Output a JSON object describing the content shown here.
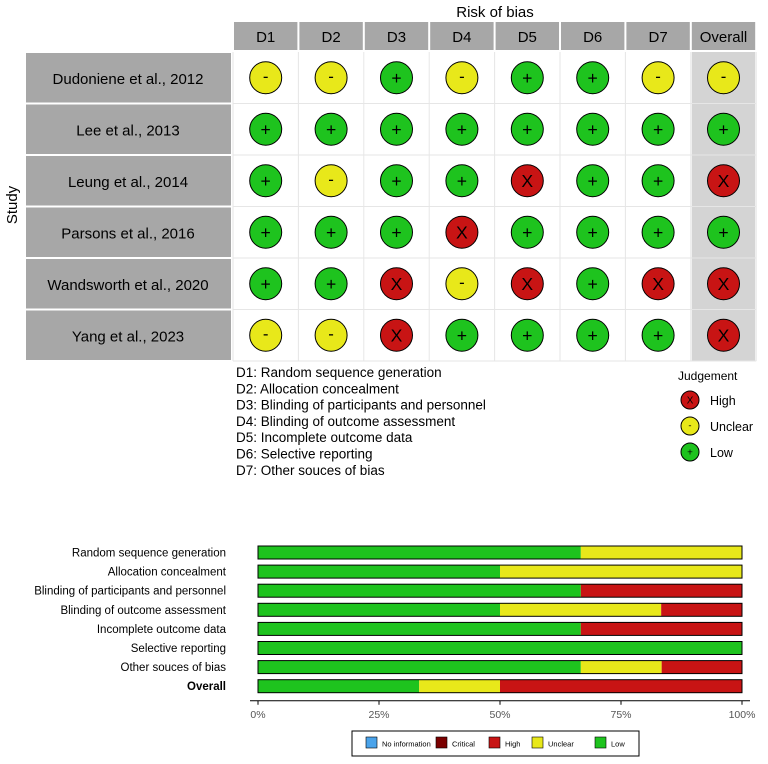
{
  "colors": {
    "low": "#1ec31e",
    "unclear": "#e8e81a",
    "high": "#c81414",
    "critical": "#7a0000",
    "no_information": "#4aa3ea",
    "header_gray": "#a7a7a7",
    "overall_gray": "#d4d4d4"
  },
  "traffic_light": {
    "title": "Risk of bias",
    "ylabel": "Study",
    "domains": [
      "D1",
      "D2",
      "D3",
      "D4",
      "D5",
      "D6",
      "D7",
      "Overall"
    ],
    "studies": [
      {
        "name": "Dudoniene et al., 2012",
        "judgements": [
          "unclear",
          "unclear",
          "low",
          "unclear",
          "low",
          "low",
          "unclear",
          "unclear"
        ]
      },
      {
        "name": "Lee et al., 2013",
        "judgements": [
          "low",
          "low",
          "low",
          "low",
          "low",
          "low",
          "low",
          "low"
        ]
      },
      {
        "name": "Leung et al., 2014",
        "judgements": [
          "low",
          "unclear",
          "low",
          "low",
          "high",
          "low",
          "low",
          "high"
        ]
      },
      {
        "name": "Parsons et al., 2016",
        "judgements": [
          "low",
          "low",
          "low",
          "high",
          "low",
          "low",
          "low",
          "low"
        ]
      },
      {
        "name": "Wandsworth et al., 2020",
        "judgements": [
          "low",
          "low",
          "high",
          "unclear",
          "high",
          "low",
          "high",
          "high"
        ]
      },
      {
        "name": "Yang et al., 2023",
        "judgements": [
          "unclear",
          "unclear",
          "high",
          "low",
          "low",
          "low",
          "low",
          "high"
        ]
      }
    ],
    "domain_key": [
      "D1: Random sequence generation",
      "D2: Allocation concealment",
      "D3: Blinding of participants and personnel",
      "D4: Blinding of outcome assessment",
      "D5: Incomplete outcome data",
      "D6: Selective reporting",
      "D7: Other souces of bias"
    ],
    "legend": {
      "title": "Judgement",
      "items": [
        {
          "level": "high",
          "label": "High"
        },
        {
          "level": "unclear",
          "label": "Unclear"
        },
        {
          "level": "low",
          "label": "Low"
        }
      ]
    }
  },
  "chart_data": {
    "type": "bar",
    "orientation": "horizontal",
    "stacked": true,
    "categories": [
      "Random sequence generation",
      "Allocation concealment",
      "Blinding of participants and personnel",
      "Blinding of outcome assessment",
      "Incomplete outcome data",
      "Selective reporting",
      "Other souces of bias",
      "Overall"
    ],
    "bold_categories": [
      "Overall"
    ],
    "series": [
      {
        "name": "Low",
        "level": "low",
        "values": [
          66.7,
          50,
          66.7,
          50,
          66.7,
          100,
          66.7,
          33.3
        ]
      },
      {
        "name": "Unclear",
        "level": "unclear",
        "values": [
          33.3,
          50,
          0,
          33.3,
          0,
          0,
          16.7,
          16.7
        ]
      },
      {
        "name": "High",
        "level": "high",
        "values": [
          0,
          0,
          33.3,
          16.7,
          33.3,
          0,
          16.7,
          50
        ]
      }
    ],
    "xlim": [
      0,
      100
    ],
    "xticks": [
      "0%",
      "25%",
      "50%",
      "75%",
      "100%"
    ],
    "legend": {
      "placement": "bottom",
      "items": [
        {
          "level": "no_information",
          "label": "No information"
        },
        {
          "level": "critical",
          "label": "Critical"
        },
        {
          "level": "high",
          "label": "High"
        },
        {
          "level": "unclear",
          "label": "Unclear"
        },
        {
          "level": "low",
          "label": "Low"
        }
      ]
    }
  }
}
